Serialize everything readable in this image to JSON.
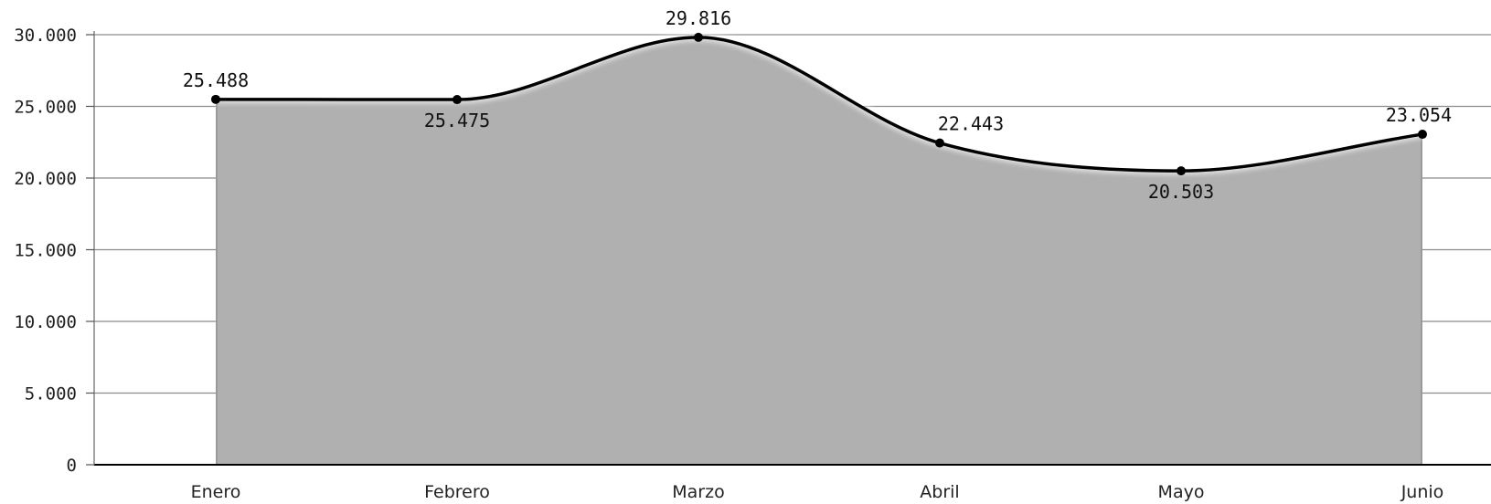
{
  "chart_data": {
    "type": "area",
    "categories": [
      "Enero",
      "Febrero",
      "Marzo",
      "Abril",
      "Mayo",
      "Junio"
    ],
    "values": [
      25488,
      25475,
      29816,
      22443,
      20503,
      23054
    ],
    "data_labels": [
      "25.488",
      "25.475",
      "29.816",
      "22.443",
      "20.503",
      "23.054"
    ],
    "label_position": [
      "above",
      "below",
      "above",
      "above",
      "below",
      "above"
    ],
    "yticks": [
      0,
      5000,
      10000,
      15000,
      20000,
      25000,
      30000
    ],
    "ytick_labels": [
      "0",
      "5.000",
      "10.000",
      "15.000",
      "20.000",
      "25.000",
      "30.000"
    ],
    "ylim": [
      0,
      30000
    ],
    "grid": true,
    "smooth": true,
    "colors": {
      "fill": "#b0b0b0",
      "line": "#000000",
      "grid": "#8c8c8c",
      "axis": "#000000",
      "marker": "#000000"
    }
  }
}
